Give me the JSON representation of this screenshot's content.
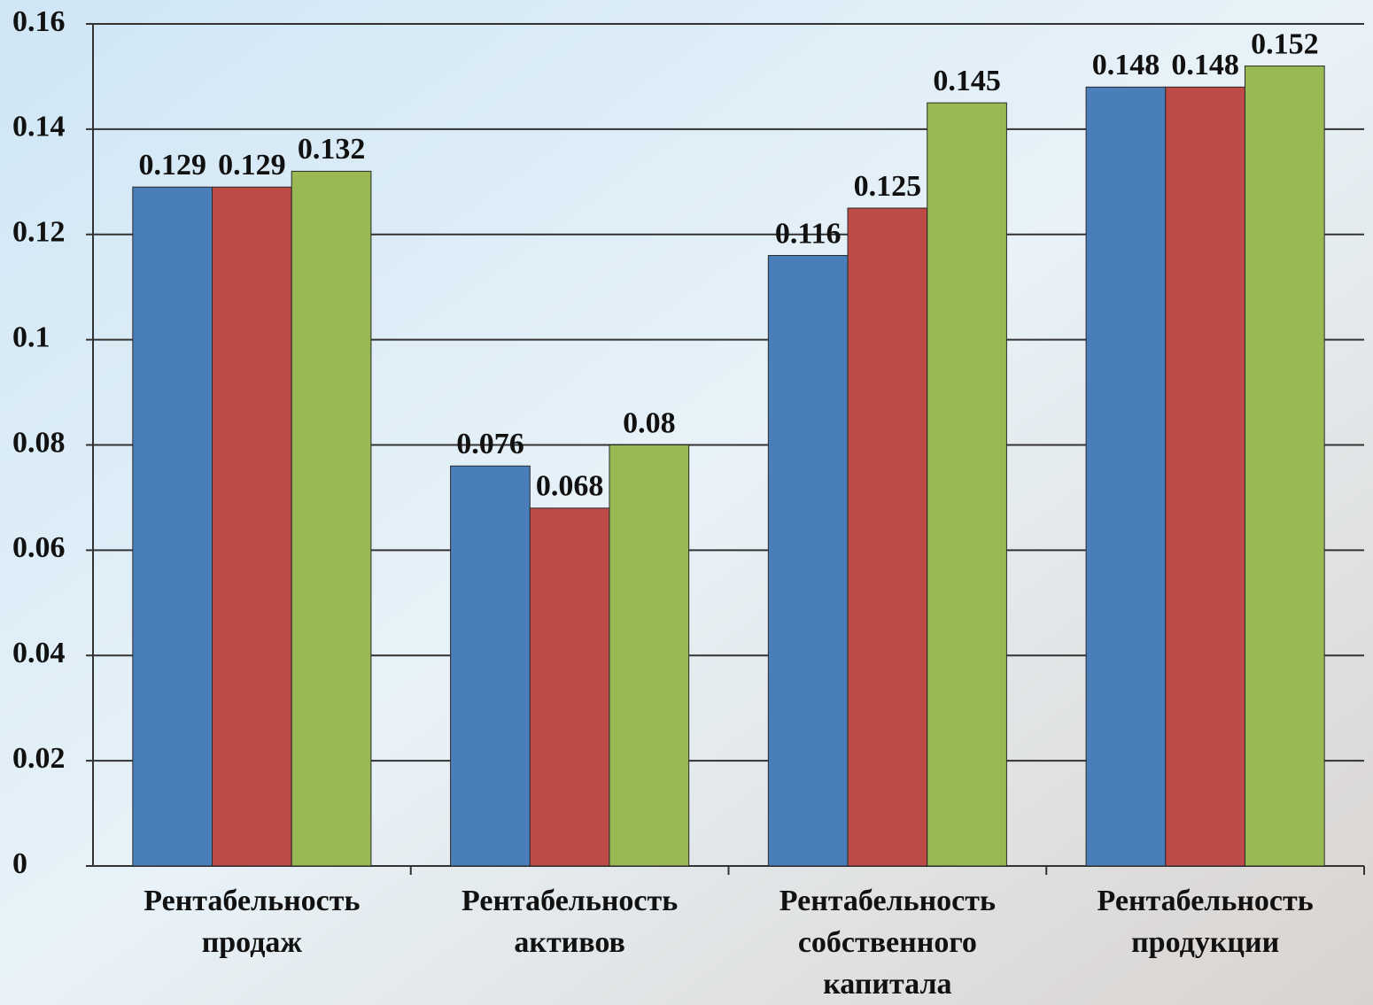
{
  "chart_data": {
    "type": "bar",
    "categories": [
      [
        "Рентабельность",
        "продаж"
      ],
      [
        "Рентабельность",
        "активов"
      ],
      [
        "Рентабельность",
        "собственного",
        "капитала"
      ],
      [
        "Рентабельность",
        "продукции"
      ]
    ],
    "series": [
      {
        "color": "#4a7ebb",
        "values": [
          0.129,
          0.076,
          0.116,
          0.148
        ]
      },
      {
        "color": "#be4b48",
        "values": [
          0.129,
          0.068,
          0.125,
          0.148
        ]
      },
      {
        "color": "#98b954",
        "values": [
          0.132,
          0.08,
          0.145,
          0.152
        ]
      }
    ],
    "ylim": [
      0,
      0.16
    ],
    "yticks": [
      0,
      0.02,
      0.04,
      0.06,
      0.08,
      0.1,
      0.12,
      0.14,
      0.16
    ],
    "grid": true
  }
}
